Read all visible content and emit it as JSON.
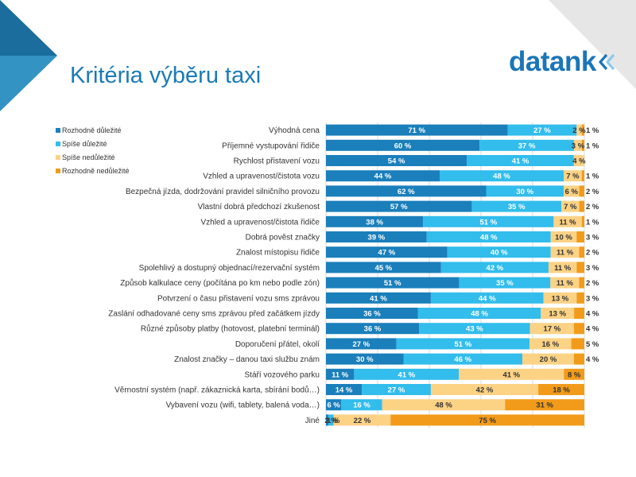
{
  "title": "Kritéria výběru taxi",
  "logo": {
    "text": "datank"
  },
  "colors": {
    "strong_important": "#1a7fbb",
    "somewhat_important": "#32bdec",
    "somewhat_unimportant": "#fcd285",
    "strong_unimportant": "#f29b1b",
    "title": "#1b7bb4",
    "decor_dark": "#1a6d9c",
    "decor_light": "#49b3e2"
  },
  "legend": [
    {
      "label": "Rozhodně důležité",
      "color": "#1a7fbb"
    },
    {
      "label": "Spíše důležité",
      "color": "#32bdec"
    },
    {
      "label": "Spíše nedůležité",
      "color": "#fcd285"
    },
    {
      "label": "Rozhodně nedůležité",
      "color": "#f29b1b"
    }
  ],
  "chart_data": {
    "type": "bar",
    "orientation": "horizontal",
    "stacked": true,
    "xlim": [
      0,
      100
    ],
    "grid": true,
    "legend_position": "left",
    "categories": [
      "Výhodná cena",
      "Příjemné vystupování řidiče",
      "Rychlost přistavení vozu",
      "Vzhled a upravenost/čistota vozu",
      "Bezpečná jízda, dodržování pravidel silničního provozu",
      "Vlastní dobrá předchozí zkušenost",
      "Vzhled a upravenost/čistota řidiče",
      "Dobrá pověst značky",
      "Znalost místopisu řidiče",
      "Spolehlivý a dostupný objednací/rezervační systém",
      "Způsob kalkulace ceny (počítána po km nebo podle zón)",
      "Potvrzení o času přistavení vozu sms zprávou",
      "Zaslání odhadované ceny sms zprávou před začátkem jízdy",
      "Různé způsoby platby (hotovost, platební terminál)",
      "Doporučení přátel, okolí",
      "Znalost značky – danou taxi službu znám",
      "Stáří vozového parku",
      "Věrnostní systém (např. zákaznická karta, sbírání bodů…)",
      "Vybavení vozu (wifi, tablety, balená voda…)",
      "Jiné"
    ],
    "series": [
      {
        "name": "Rozhodně důležité",
        "values": [
          71,
          60,
          54,
          44,
          62,
          57,
          38,
          39,
          47,
          45,
          51,
          41,
          36,
          36,
          27,
          30,
          11,
          14,
          6,
          1
        ]
      },
      {
        "name": "Spíše důležité",
        "values": [
          27,
          37,
          41,
          48,
          30,
          35,
          51,
          48,
          40,
          42,
          35,
          44,
          48,
          43,
          51,
          46,
          41,
          27,
          16,
          2
        ]
      },
      {
        "name": "Spíše nedůležité",
        "values": [
          2,
          3,
          4,
          7,
          6,
          7,
          11,
          10,
          11,
          11,
          11,
          13,
          13,
          17,
          16,
          20,
          41,
          42,
          48,
          22
        ]
      },
      {
        "name": "Rozhodně nedůležité",
        "values": [
          1,
          1,
          0,
          1,
          2,
          2,
          1,
          3,
          2,
          3,
          2,
          3,
          4,
          4,
          5,
          4,
          8,
          18,
          31,
          75
        ]
      }
    ],
    "data_labels": [
      [
        "71 %",
        "27 %",
        "2 %",
        "1 %"
      ],
      [
        "60 %",
        "37 %",
        "3 %",
        "1 %"
      ],
      [
        "54 %",
        "41 %",
        "4 %",
        ""
      ],
      [
        "44 %",
        "48 %",
        "7 %",
        "1 %"
      ],
      [
        "62 %",
        "30 %",
        "6 %",
        "2 %"
      ],
      [
        "57 %",
        "35 %",
        "7 %",
        "2 %"
      ],
      [
        "38 %",
        "51 %",
        "11 %",
        "1 %"
      ],
      [
        "39 %",
        "48 %",
        "10 %",
        "3 %"
      ],
      [
        "47 %",
        "40 %",
        "11 %",
        "2 %"
      ],
      [
        "45 %",
        "42 %",
        "11 %",
        "3 %"
      ],
      [
        "51 %",
        "35 %",
        "11 %",
        "2 %"
      ],
      [
        "41 %",
        "44 %",
        "13 %",
        "3 %"
      ],
      [
        "36 %",
        "48 %",
        "13 %",
        "4 %"
      ],
      [
        "36 %",
        "43 %",
        "17 %",
        "4 %"
      ],
      [
        "27 %",
        "51 %",
        "16 %",
        "5 %"
      ],
      [
        "30 %",
        "46 %",
        "20 %",
        "4 %"
      ],
      [
        "11 %",
        "41 %",
        "41 %",
        "8 %"
      ],
      [
        "14 %",
        "27 %",
        "42 %",
        "18 %"
      ],
      [
        "6 %",
        "16 %",
        "48 %",
        "31 %"
      ],
      [
        "1 %",
        "2 %",
        "22 %",
        "75 %"
      ]
    ]
  }
}
